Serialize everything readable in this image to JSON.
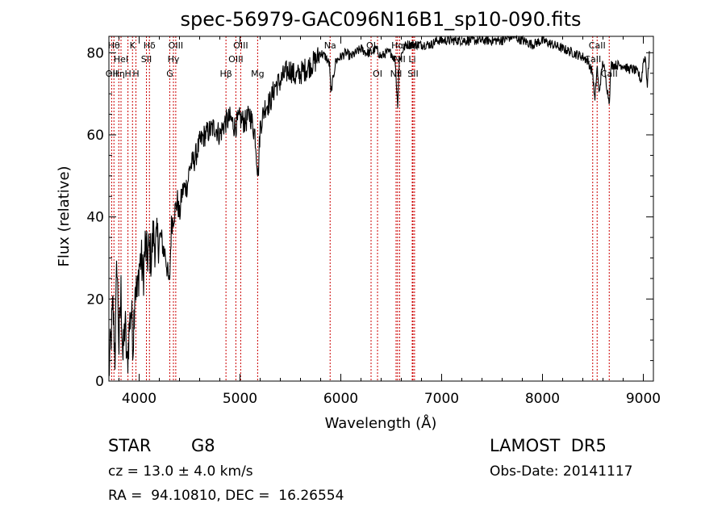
{
  "chart_data": {
    "type": "line",
    "title": "spec-56979-GAC096N16B1_sp10-090.fits",
    "xlabel": "Wavelength (Å)",
    "ylabel": "Flux (relative)",
    "xlim": [
      3700,
      9100
    ],
    "ylim": [
      0,
      84
    ],
    "xticks": [
      4000,
      5000,
      6000,
      7000,
      8000,
      9000
    ],
    "yticks": [
      0,
      20,
      40,
      60,
      80
    ],
    "grid": false,
    "series": [
      {
        "x": [
          3700,
          3720,
          3740,
          3760,
          3780,
          3800,
          3820,
          3840,
          3860,
          3880,
          3900,
          3920,
          3940,
          3960,
          3980,
          4000,
          4020,
          4040,
          4060,
          4080,
          4100,
          4120,
          4140,
          4160,
          4180,
          4200,
          4220,
          4240,
          4260,
          4280,
          4300,
          4320,
          4340,
          4360,
          4380,
          4400,
          4420,
          4440,
          4460,
          4480,
          4500,
          4550,
          4600,
          4650,
          4700,
          4750,
          4800,
          4850,
          4900,
          4950,
          5000,
          5050,
          5100,
          5150,
          5180,
          5200,
          5250,
          5300,
          5350,
          5400,
          5450,
          5500,
          5550,
          5600,
          5650,
          5700,
          5750,
          5800,
          5850,
          5890,
          5900,
          5950,
          6000,
          6050,
          6100,
          6150,
          6200,
          6250,
          6300,
          6350,
          6400,
          6450,
          6500,
          6540,
          6563,
          6580,
          6620,
          6650,
          6700,
          6750,
          6800,
          6850,
          6900,
          6950,
          7000,
          7100,
          7200,
          7300,
          7400,
          7500,
          7600,
          7700,
          7800,
          7900,
          8000,
          8100,
          8200,
          8300,
          8400,
          8450,
          8498,
          8520,
          8542,
          8560,
          8600,
          8662,
          8680,
          8700,
          8750,
          8800,
          8850,
          8900,
          8950,
          8980,
          9000,
          9020,
          9040,
          9060
        ],
        "values": [
          2,
          10,
          18,
          6,
          30,
          8,
          22,
          5,
          15,
          3,
          12,
          18,
          9,
          25,
          20,
          28,
          30,
          25,
          33,
          30,
          32,
          30,
          36,
          33,
          34,
          35,
          35,
          32,
          31,
          27,
          23,
          38,
          40,
          42,
          44,
          40,
          45,
          47,
          47,
          48,
          52,
          54,
          58,
          60,
          61,
          62,
          60,
          63,
          64,
          62,
          64,
          63,
          65,
          60,
          50,
          62,
          67,
          68,
          72,
          73,
          75,
          76,
          74,
          75,
          76,
          77,
          78,
          80,
          79,
          77,
          70,
          78,
          79,
          80,
          79,
          80,
          81,
          80,
          80,
          81,
          79,
          80,
          80,
          78,
          67,
          78,
          81,
          82,
          82,
          82,
          82,
          82,
          82,
          83,
          83,
          83,
          83,
          83,
          83,
          83,
          83,
          84,
          83,
          82,
          83,
          82,
          81,
          80,
          79,
          78,
          75,
          68,
          77,
          70,
          78,
          68,
          77,
          77,
          77,
          77,
          76,
          76,
          75,
          73,
          78,
          79,
          72,
          80
        ]
      }
    ],
    "line_markers": [
      {
        "wl": 3727,
        "name": "OII",
        "row": 2
      },
      {
        "wl": 3750,
        "name": "Hθ",
        "row": 0
      },
      {
        "wl": 3798,
        "name": "Hη",
        "row": 2
      },
      {
        "wl": 3820,
        "name": "HeI",
        "row": 1
      },
      {
        "wl": 3889,
        "name": "H",
        "row": 2
      },
      {
        "wl": 3934,
        "name": "K",
        "row": 0
      },
      {
        "wl": 3968,
        "name": "H",
        "row": 2
      },
      {
        "wl": 4072,
        "name": "SII",
        "row": 1
      },
      {
        "wl": 4102,
        "name": "Hδ",
        "row": 0
      },
      {
        "wl": 4304,
        "name": "G",
        "row": 2
      },
      {
        "wl": 4340,
        "name": "Hγ",
        "row": 1
      },
      {
        "wl": 4363,
        "name": "OIII",
        "row": 0
      },
      {
        "wl": 4861,
        "name": "Hβ",
        "row": 2
      },
      {
        "wl": 4959,
        "name": "OIII",
        "row": 1
      },
      {
        "wl": 5007,
        "name": "OIII",
        "row": 0
      },
      {
        "wl": 5175,
        "name": "Mg",
        "row": 2
      },
      {
        "wl": 5894,
        "name": "Na",
        "row": 0
      },
      {
        "wl": 6300,
        "name": "OI",
        "row": 0
      },
      {
        "wl": 6364,
        "name": "OI",
        "row": 2
      },
      {
        "wl": 6548,
        "name": "NII",
        "row": 2
      },
      {
        "wl": 6563,
        "name": "Hα",
        "row": 0
      },
      {
        "wl": 6583,
        "name": "NII",
        "row": 1
      },
      {
        "wl": 6708,
        "name": "Li",
        "row": 1
      },
      {
        "wl": 6716,
        "name": "SII",
        "row": 2
      },
      {
        "wl": 6731,
        "name": "SII",
        "row": 0
      },
      {
        "wl": 8498,
        "name": "CaII",
        "row": 1
      },
      {
        "wl": 8542,
        "name": "CaII",
        "row": 0
      },
      {
        "wl": 8662,
        "name": "CaII",
        "row": 2
      }
    ]
  },
  "footer": {
    "object_class": "STAR",
    "subclass": "G8",
    "survey": "LAMOST  DR5",
    "cz": "cz = 13.0 ± 4.0 km/s",
    "obs_date": "Obs-Date: 20141117",
    "radec": "RA =  94.10810, DEC =  16.26554"
  },
  "colors": {
    "spectrum": "#000000",
    "marker_line": "#cc0000",
    "axes": "#000000"
  }
}
